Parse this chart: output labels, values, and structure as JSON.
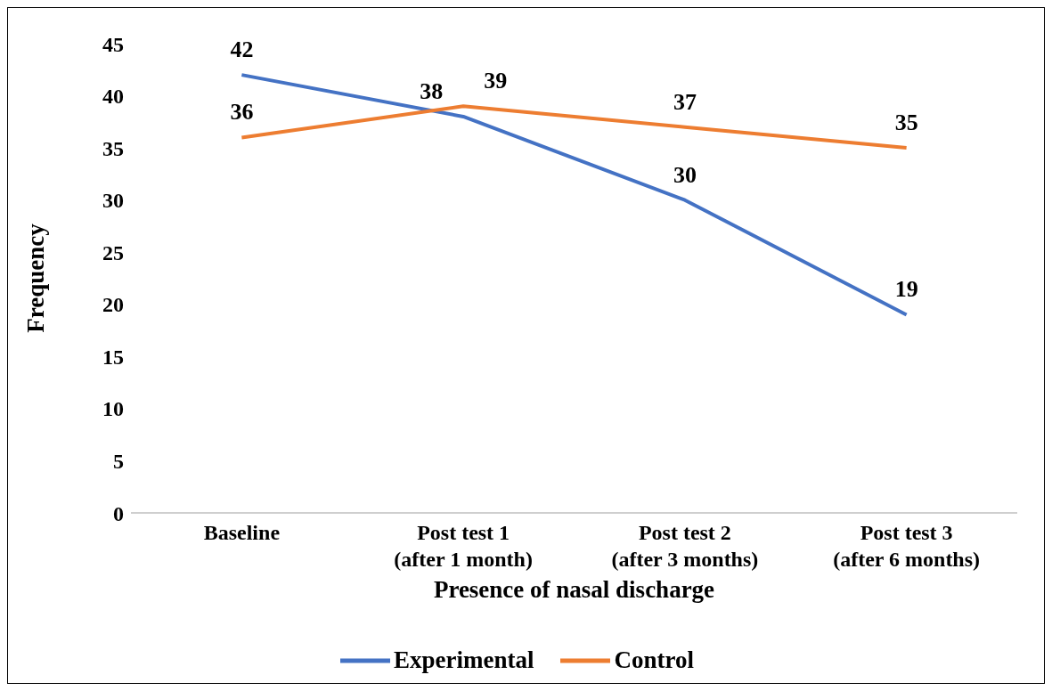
{
  "chart_data": {
    "type": "line",
    "xlabel": "Presence of nasal discharge",
    "ylabel": "Frequency",
    "categories": [
      "Baseline",
      "Post test 1\n(after 1 month)",
      "Post test 2\n(after 3 months)",
      "Post test 3\n(after 6 months)"
    ],
    "series": [
      {
        "name": "Experimental",
        "color": "#4472c4",
        "values": [
          42,
          38,
          30,
          19
        ]
      },
      {
        "name": "Control",
        "color": "#ed7d31",
        "values": [
          36,
          39,
          37,
          35
        ]
      }
    ],
    "ylim": [
      0,
      45
    ],
    "yticks": [
      0,
      5,
      10,
      15,
      20,
      25,
      30,
      35,
      40,
      45
    ],
    "grid": false,
    "legend": "bottom",
    "data_labels": true,
    "marker": "none",
    "line_style": "solid"
  }
}
